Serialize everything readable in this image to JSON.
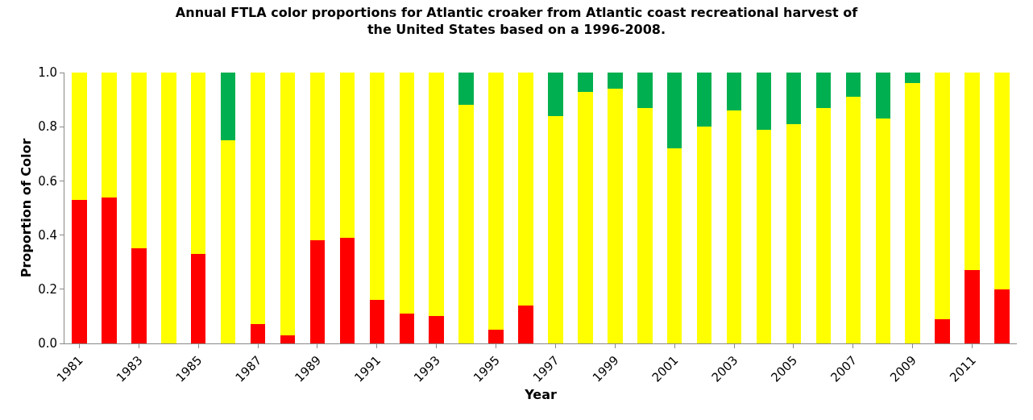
{
  "chart_data": {
    "type": "bar",
    "stacked": true,
    "title": "Annual FTLA color proportions for Atlantic croaker from Atlantic coast recreational harvest of the United States based on a 1996-2008.",
    "xlabel": "Year",
    "ylabel": "Proportion of Color",
    "categories": [
      "1981",
      null,
      "1983",
      null,
      "1985",
      null,
      "1987",
      null,
      "1989",
      null,
      "1991",
      null,
      "1993",
      null,
      "1995",
      null,
      "1997",
      null,
      "1999",
      null,
      "2001",
      null,
      "2003",
      null,
      "2005",
      null,
      "2007",
      null,
      "2009",
      null,
      "2011",
      null
    ],
    "series": [
      {
        "color": "#ff0000",
        "values": [
          0.53,
          0.54,
          0.35,
          0,
          0.33,
          0,
          0.07,
          0.03,
          0.38,
          0.39,
          0.16,
          0.11,
          0.1,
          0,
          0.05,
          0.14,
          0,
          0,
          0,
          0,
          0,
          0,
          0,
          0,
          0,
          0,
          0,
          0,
          0,
          0.09,
          0.27,
          0.2
        ]
      },
      {
        "color": "#ffff00",
        "values": [
          0.47,
          0.46,
          0.65,
          1,
          0.67,
          0.75,
          0.93,
          0.97,
          0.62,
          0.61,
          0.84,
          0.89,
          0.9,
          0.88,
          0.95,
          0.86,
          0.84,
          0.93,
          0.94,
          0.87,
          0.72,
          0.8,
          0.86,
          0.79,
          0.81,
          0.87,
          0.91,
          0.83,
          0.96,
          0.91,
          0.73,
          0.8
        ]
      },
      {
        "color": "#00b050",
        "values": [
          0,
          0,
          0,
          0,
          0,
          0.25,
          0,
          0,
          0,
          0,
          0,
          0,
          0,
          0.12,
          0,
          0,
          0.16,
          0.07,
          0.06,
          0.13,
          0.28,
          0.2,
          0.14,
          0.21,
          0.19,
          0.13,
          0.09,
          0.17,
          0.04,
          0,
          0,
          0
        ]
      }
    ],
    "ylim": [
      0,
      1
    ],
    "yticks": [
      {
        "value": 0,
        "label": "0.0"
      },
      {
        "value": 0.2,
        "label": "0.2"
      },
      {
        "value": 0.4,
        "label": "0.4"
      },
      {
        "value": 0.6,
        "label": "0.6"
      },
      {
        "value": 0.8,
        "label": "0.8"
      },
      {
        "value": 1,
        "label": "1.0"
      }
    ],
    "grid": false
  }
}
